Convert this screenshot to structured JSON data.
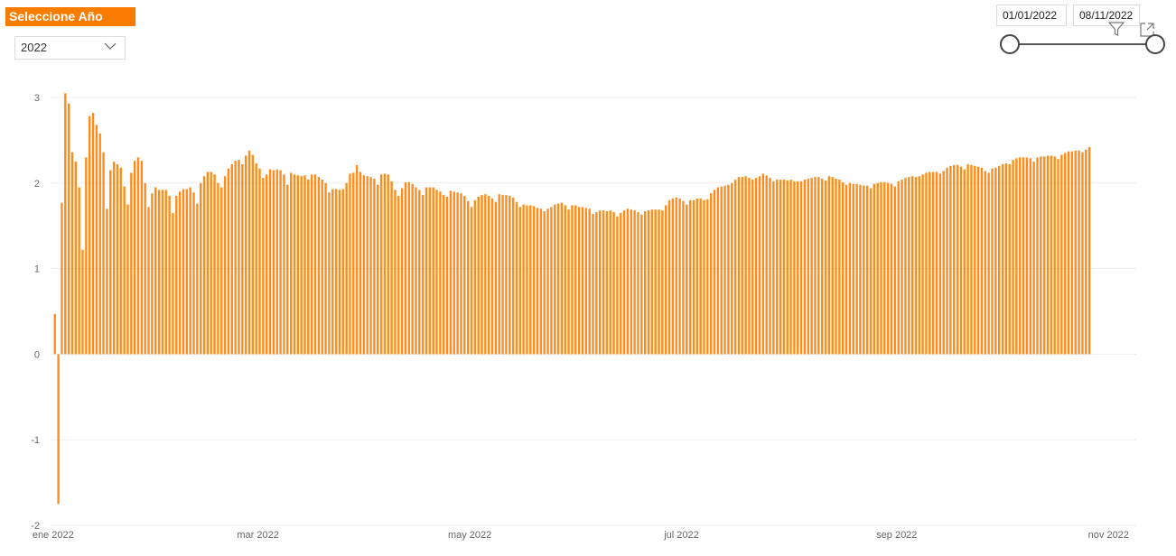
{
  "slicer": {
    "title": "Seleccione Año",
    "selected_year": "2022"
  },
  "date_range": {
    "start": "01/01/2022",
    "end": "08/11/2022"
  },
  "icons": {
    "filter": "filter-icon",
    "focus_mode": "focus-mode-icon",
    "dropdown": "chevron-down-icon"
  },
  "colors": {
    "bar": "#FF8C1A",
    "slicer_header": "#F77C00"
  },
  "chart_data": {
    "type": "bar",
    "title": "",
    "xlabel": "",
    "ylabel": "",
    "ylim": [
      -2,
      3
    ],
    "y_ticks": [
      3,
      2,
      1,
      0,
      -1,
      -2
    ],
    "x_tick_labels": [
      {
        "date": "2022-01-01",
        "label": "ene 2022"
      },
      {
        "date": "2022-03-01",
        "label": "mar 2022"
      },
      {
        "date": "2022-05-01",
        "label": "may 2022"
      },
      {
        "date": "2022-07-01",
        "label": "jul 2022"
      },
      {
        "date": "2022-09-01",
        "label": "sep 2022"
      },
      {
        "date": "2022-11-01",
        "label": "nov 2022"
      }
    ],
    "x_range": [
      "2021-12-31",
      "2022-11-09"
    ],
    "grid": true,
    "series": [
      {
        "start_date": "2022-01-01",
        "step_days": 1,
        "values": [
          0.47,
          -1.75,
          1.77,
          3.05,
          2.93,
          2.36,
          2.25,
          1.95,
          1.22,
          2.3,
          2.78,
          2.82,
          2.68,
          2.58,
          2.36,
          1.7,
          2.15,
          2.25,
          2.22,
          2.18,
          1.96,
          1.75,
          2.12,
          2.26,
          2.3,
          2.26,
          2.0,
          1.72,
          1.88,
          1.95,
          1.92,
          1.92,
          1.92,
          1.85,
          1.65,
          1.85,
          1.9,
          1.93,
          1.93,
          1.95,
          1.89,
          1.76,
          2.0,
          2.08,
          2.13,
          2.13,
          2.1,
          2.0,
          1.95,
          2.08,
          2.17,
          2.22,
          2.26,
          2.27,
          2.22,
          2.32,
          2.38,
          2.33,
          2.23,
          2.17,
          2.06,
          2.1,
          2.16,
          2.15,
          2.16,
          2.15,
          2.1,
          1.98,
          2.12,
          2.1,
          2.09,
          2.08,
          2.09,
          2.04,
          2.1,
          2.1,
          2.07,
          2.04,
          2.0,
          1.89,
          1.93,
          1.93,
          1.92,
          1.93,
          2.0,
          2.11,
          2.12,
          2.21,
          2.13,
          2.09,
          2.08,
          2.07,
          2.05,
          1.98,
          2.1,
          2.11,
          2.1,
          2.02,
          1.92,
          1.85,
          1.94,
          2.01,
          2.01,
          1.99,
          1.95,
          1.92,
          1.86,
          1.95,
          1.95,
          1.95,
          1.92,
          1.9,
          1.86,
          1.84,
          1.91,
          1.9,
          1.89,
          1.88,
          1.85,
          1.79,
          1.72,
          1.8,
          1.84,
          1.86,
          1.87,
          1.85,
          1.82,
          1.78,
          1.87,
          1.86,
          1.86,
          1.85,
          1.83,
          1.78,
          1.72,
          1.75,
          1.74,
          1.74,
          1.73,
          1.71,
          1.7,
          1.67,
          1.7,
          1.72,
          1.75,
          1.76,
          1.77,
          1.74,
          1.69,
          1.74,
          1.74,
          1.72,
          1.72,
          1.71,
          1.7,
          1.64,
          1.66,
          1.68,
          1.68,
          1.67,
          1.68,
          1.66,
          1.61,
          1.65,
          1.68,
          1.7,
          1.69,
          1.68,
          1.66,
          1.63,
          1.67,
          1.68,
          1.69,
          1.69,
          1.69,
          1.68,
          1.74,
          1.8,
          1.82,
          1.83,
          1.82,
          1.79,
          1.75,
          1.8,
          1.8,
          1.82,
          1.82,
          1.8,
          1.81,
          1.88,
          1.92,
          1.95,
          1.96,
          1.97,
          1.98,
          2.0,
          2.04,
          2.07,
          2.07,
          2.08,
          2.06,
          2.04,
          2.06,
          2.08,
          2.11,
          2.09,
          2.06,
          2.02,
          2.04,
          2.04,
          2.04,
          2.03,
          2.04,
          2.02,
          2.02,
          2.02,
          2.04,
          2.05,
          2.06,
          2.07,
          2.07,
          2.05,
          2.03,
          2.08,
          2.07,
          2.05,
          2.04,
          2.01,
          1.98,
          2.0,
          1.99,
          1.99,
          1.98,
          1.97,
          1.97,
          1.94,
          1.99,
          2.0,
          2.01,
          2.01,
          2.0,
          1.99,
          1.96,
          2.02,
          2.04,
          2.06,
          2.07,
          2.08,
          2.07,
          2.08,
          2.1,
          2.12,
          2.13,
          2.13,
          2.13,
          2.11,
          2.14,
          2.18,
          2.2,
          2.21,
          2.21,
          2.19,
          2.16,
          2.22,
          2.21,
          2.2,
          2.19,
          2.18,
          2.14,
          2.12,
          2.17,
          2.18,
          2.2,
          2.22,
          2.23,
          2.22,
          2.27,
          2.29,
          2.3,
          2.3,
          2.3,
          2.29,
          2.25,
          2.3,
          2.31,
          2.31,
          2.32,
          2.32,
          2.31,
          2.28,
          2.33,
          2.35,
          2.37,
          2.37,
          2.38,
          2.38,
          2.36,
          2.39,
          2.42
        ]
      }
    ]
  }
}
